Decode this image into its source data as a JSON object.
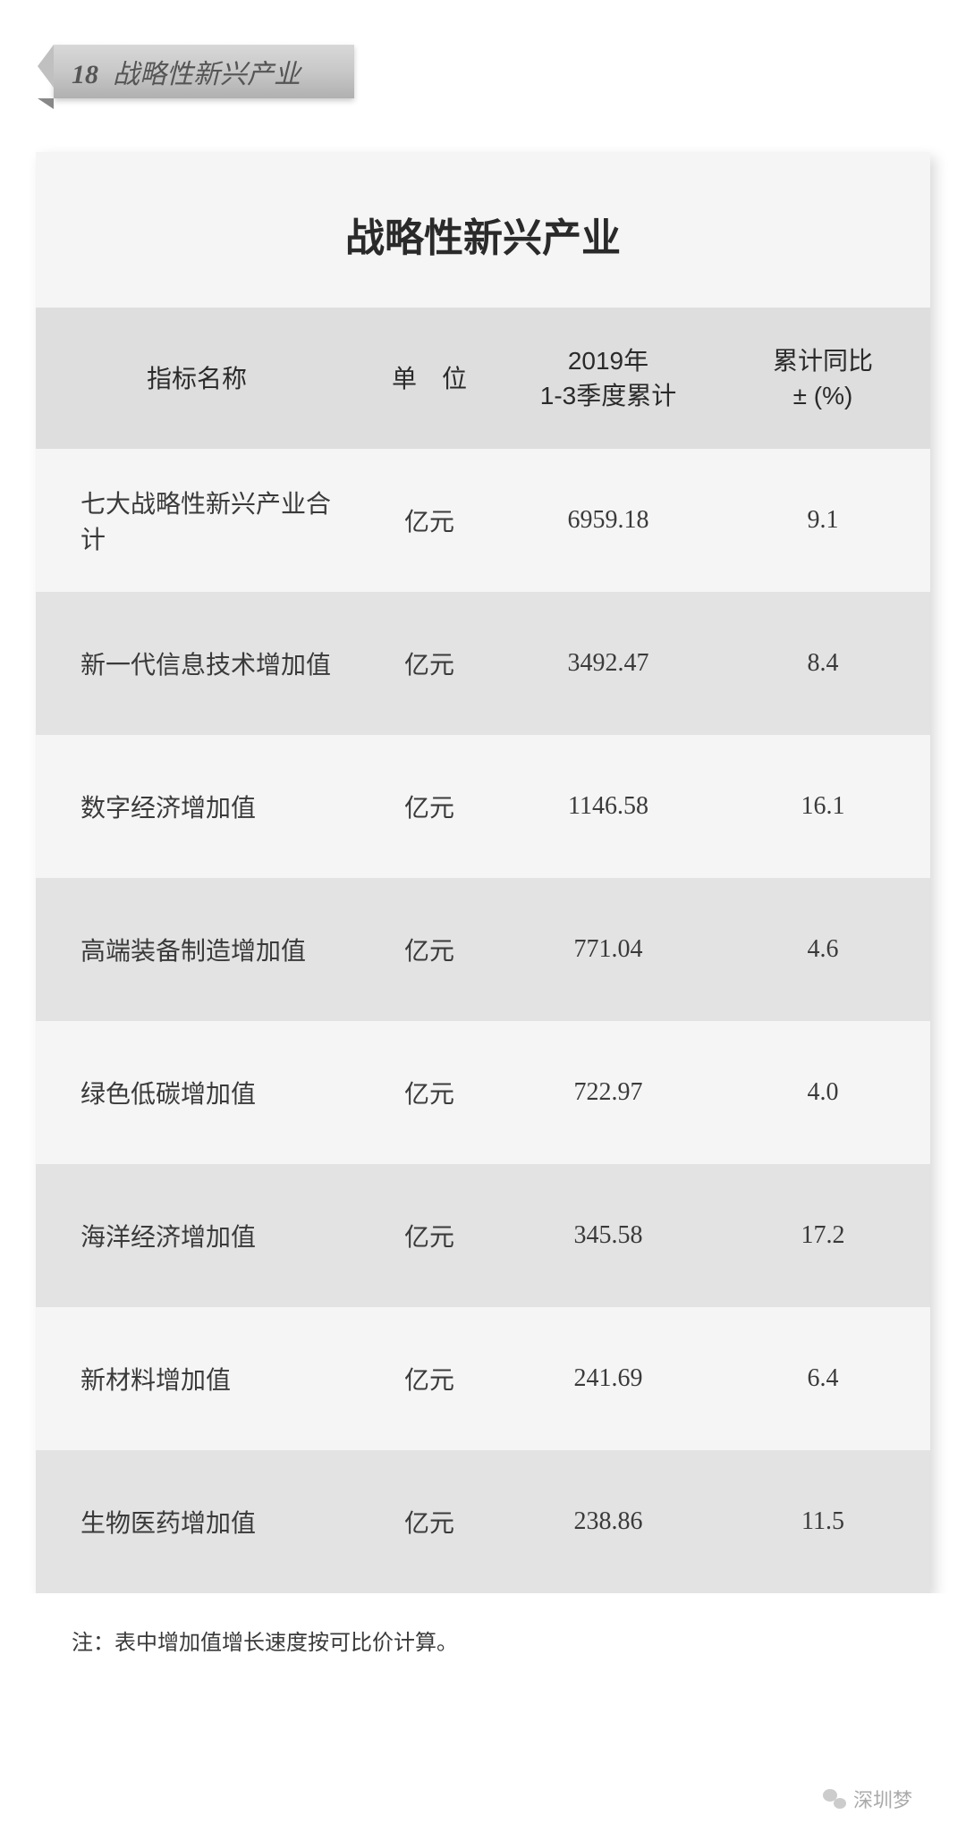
{
  "header": {
    "number": "18",
    "text": "战略性新兴产业"
  },
  "title": "战略性新兴产业",
  "table": {
    "columns": [
      "指标名称",
      "单　位",
      "2019年\n1-3季度累计",
      "累计同比\n± (%)"
    ],
    "col_widths_pct": [
      36,
      16,
      24,
      24
    ],
    "header_bg": "#dedede",
    "odd_bg": "#f5f5f5",
    "even_bg": "#e3e3e3",
    "font_size": 28,
    "header_font_size": 28,
    "text_color": "#3a3a3a",
    "rows": [
      {
        "name": "七大战略性新兴产业合计",
        "unit": "亿元",
        "value": "6959.18",
        "yoy": "9.1"
      },
      {
        "name": "新一代信息技术增加值",
        "unit": "亿元",
        "value": "3492.47",
        "yoy": "8.4"
      },
      {
        "name": "数字经济增加值",
        "unit": "亿元",
        "value": "1146.58",
        "yoy": "16.1"
      },
      {
        "name": "高端装备制造增加值",
        "unit": "亿元",
        "value": "771.04",
        "yoy": "4.6"
      },
      {
        "name": "绿色低碳增加值",
        "unit": "亿元",
        "value": "722.97",
        "yoy": "4.0"
      },
      {
        "name": "海洋经济增加值",
        "unit": "亿元",
        "value": "345.58",
        "yoy": "17.2"
      },
      {
        "name": "新材料增加值",
        "unit": "亿元",
        "value": "241.69",
        "yoy": "6.4"
      },
      {
        "name": "生物医药增加值",
        "unit": "亿元",
        "value": "238.86",
        "yoy": "11.5"
      }
    ]
  },
  "footnote": "注：表中增加值增长速度按可比价计算。",
  "credit": "深圳梦",
  "colors": {
    "page_bg": "#ffffff",
    "card_bg": "#f5f5f5",
    "banner_gradient_top": "#d8d8d8",
    "banner_gradient_bottom": "#b0b0b0",
    "credit_color": "#aaaaaa"
  }
}
